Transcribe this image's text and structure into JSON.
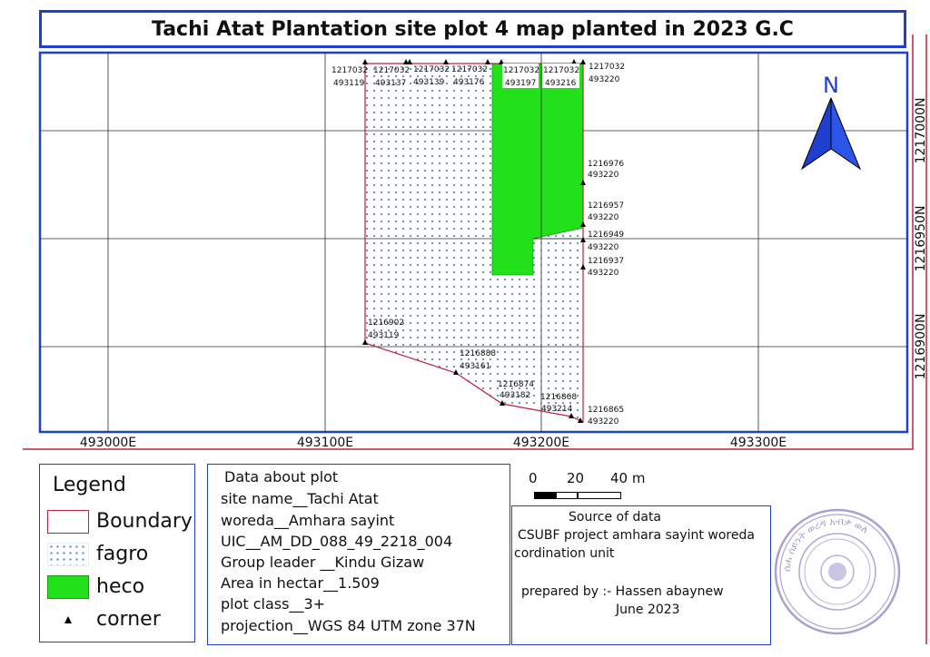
{
  "title": "Tachi Atat Plantation site plot 4 map planted in 2023 G.C",
  "north_arrow": {
    "label": "N",
    "icon": "north-arrow-icon"
  },
  "axes": {
    "x_ticks": [
      "493000E",
      "493100E",
      "493200E",
      "493300E"
    ],
    "y_ticks": [
      "1217000N",
      "1216950N",
      "1216900N"
    ]
  },
  "corners": [
    {
      "n": "1217032",
      "e": "493119"
    },
    {
      "n": "1217032",
      "e": "493137"
    },
    {
      "n": "1217032",
      "e": "493139"
    },
    {
      "n": "1217032",
      "e": "493176"
    },
    {
      "n": "1217032",
      "e": "493197"
    },
    {
      "n": "1217032",
      "e": "493216"
    },
    {
      "n": "1217032",
      "e": "493220"
    },
    {
      "n": "1216976",
      "e": "493220"
    },
    {
      "n": "1216957",
      "e": "493220"
    },
    {
      "n": "1216949",
      "e": "493220"
    },
    {
      "n": "1216937",
      "e": "493220"
    },
    {
      "n": "1216902",
      "e": "493119"
    },
    {
      "n": "1216888",
      "e": "493161"
    },
    {
      "n": "1216874",
      "e": "493182"
    },
    {
      "n": "1216868",
      "e": "493214"
    },
    {
      "n": "1216865",
      "e": "493220"
    }
  ],
  "legend": {
    "title": "Legend",
    "items": [
      {
        "label": "Boundary",
        "color": "#c0223b"
      },
      {
        "label": "fagro",
        "color": "#5a87c8"
      },
      {
        "label": "heco",
        "color": "#22e019"
      },
      {
        "label": "corner",
        "color": "#000000"
      }
    ]
  },
  "plot_info": {
    "heading": "Data about plot",
    "lines": [
      "site name__Tachi Atat",
      "woreda__Amhara sayint",
      "UIC__AM_DD_088_49_2218_004",
      "Group leader __Kindu Gizaw",
      "Area in hectar__1.509",
      "plot class__3+",
      "projection__WGS 84 UTM zone 37N"
    ]
  },
  "scale_bar": {
    "labels": [
      "0",
      "20",
      "40 m"
    ]
  },
  "source": {
    "heading": "Source of data",
    "line1": "CSUBF project amhara sayint woreda",
    "line2": "cordination unit",
    "prepared_by": "prepared by :- Hassen abaynew",
    "date": "June 2023"
  },
  "seal": {
    "text": "ሰሐ ሰይንት ወረዳ አብቃ ወለ"
  }
}
